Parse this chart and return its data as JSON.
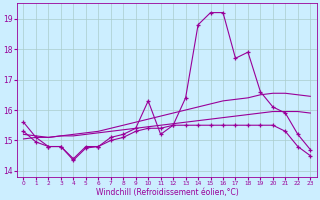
{
  "xlabel": "Windchill (Refroidissement éolien,°C)",
  "background_color": "#cceeff",
  "grid_color": "#aacccc",
  "line_color": "#990099",
  "xlim": [
    -0.5,
    23.5
  ],
  "ylim": [
    13.8,
    19.5
  ],
  "yticks": [
    14,
    15,
    16,
    17,
    18,
    19
  ],
  "xticks": [
    0,
    1,
    2,
    3,
    4,
    5,
    6,
    7,
    8,
    9,
    10,
    11,
    12,
    13,
    14,
    15,
    16,
    17,
    18,
    19,
    20,
    21,
    22,
    23
  ],
  "x": [
    0,
    1,
    2,
    3,
    4,
    5,
    6,
    7,
    8,
    9,
    10,
    11,
    12,
    13,
    14,
    15,
    16,
    17,
    18,
    19,
    20,
    21,
    22,
    23
  ],
  "line1_y": [
    15.6,
    15.1,
    14.8,
    14.8,
    14.4,
    14.8,
    14.8,
    15.1,
    15.2,
    15.4,
    16.3,
    15.2,
    15.5,
    16.4,
    18.8,
    19.2,
    19.2,
    17.7,
    17.9,
    16.6,
    16.1,
    15.9,
    15.2,
    14.7
  ],
  "line2_y": [
    15.3,
    14.95,
    14.8,
    14.8,
    14.35,
    14.75,
    14.8,
    15.0,
    15.1,
    15.3,
    15.4,
    15.4,
    15.5,
    15.5,
    15.5,
    15.5,
    15.5,
    15.5,
    15.5,
    15.5,
    15.5,
    15.3,
    14.8,
    14.5
  ],
  "line3_y": [
    15.2,
    15.15,
    15.1,
    15.15,
    15.2,
    15.25,
    15.3,
    15.4,
    15.5,
    15.6,
    15.7,
    15.8,
    15.9,
    16.0,
    16.1,
    16.2,
    16.3,
    16.35,
    16.4,
    16.5,
    16.55,
    16.55,
    16.5,
    16.45
  ],
  "line4_y": [
    15.05,
    15.1,
    15.1,
    15.15,
    15.15,
    15.2,
    15.25,
    15.3,
    15.35,
    15.4,
    15.45,
    15.5,
    15.55,
    15.6,
    15.65,
    15.7,
    15.75,
    15.8,
    15.85,
    15.9,
    15.95,
    15.95,
    15.95,
    15.9
  ]
}
